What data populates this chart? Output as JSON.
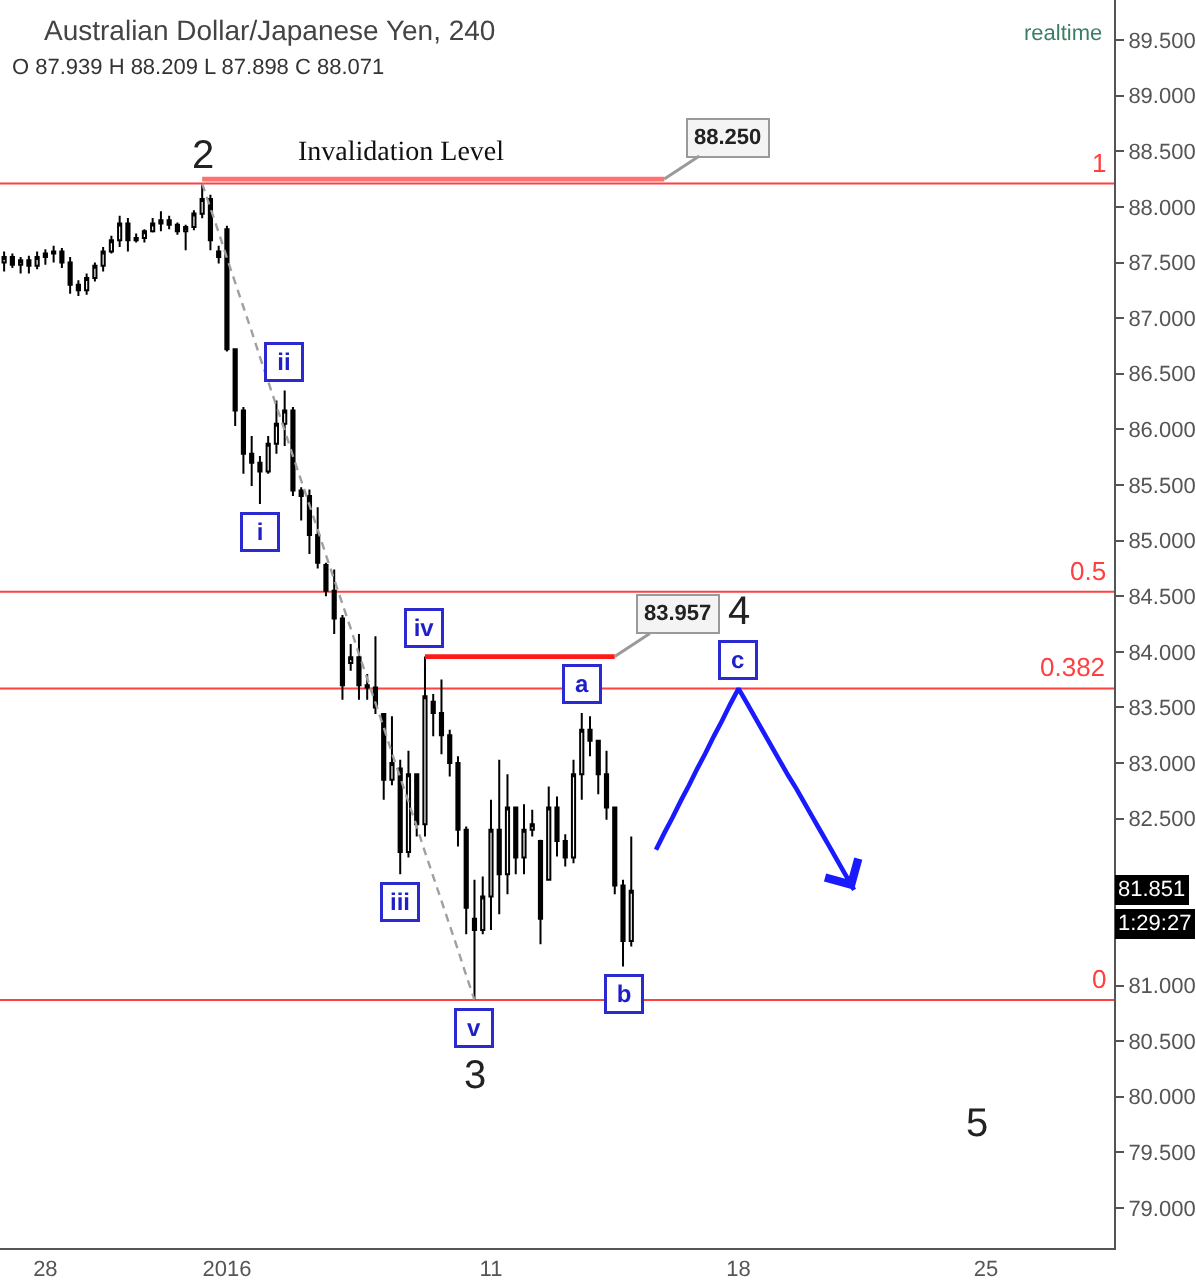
{
  "chart_data": {
    "type": "candlestick",
    "title": "Australian Dollar/Japanese Yen, 240",
    "subtitle": "O 87.939 H 88.209 L 87.898 C 88.071",
    "color": "#000000",
    "categories": [
      null,
      null,
      null,
      null,
      null,
      "28",
      null,
      null,
      null,
      null,
      null,
      null,
      null,
      null,
      null,
      null,
      null,
      null,
      null,
      null,
      null,
      null,
      null,
      null,
      null,
      null,
      null,
      "2016",
      null,
      null,
      null,
      null,
      null,
      null,
      null,
      null,
      null,
      null,
      null,
      null,
      null,
      null,
      null,
      null,
      null,
      null,
      null,
      null,
      null,
      null,
      null,
      null,
      null,
      null,
      null,
      null,
      null,
      null,
      null,
      "11",
      null,
      null,
      null,
      null,
      null,
      null,
      null,
      null,
      null,
      null,
      null,
      null,
      null,
      null,
      null,
      null,
      null,
      null,
      null,
      null,
      null,
      null,
      null,
      null,
      null,
      null,
      null,
      null,
      null,
      "18",
      null,
      null,
      null,
      null,
      null,
      null,
      null,
      null,
      null,
      null,
      null,
      null,
      null,
      null,
      null,
      null,
      null,
      null,
      null,
      null,
      null,
      null,
      null,
      null,
      null,
      null,
      null,
      null,
      null,
      "25",
      null,
      null,
      null,
      null,
      null,
      null,
      null,
      null,
      null,
      null,
      null,
      null,
      null,
      null,
      null
    ],
    "ohlc": [
      [
        87.5,
        87.6,
        87.42,
        87.55
      ],
      [
        87.55,
        87.58,
        87.45,
        87.48
      ],
      [
        87.48,
        87.55,
        87.4,
        87.52
      ],
      [
        87.52,
        87.56,
        87.4,
        87.47
      ],
      [
        87.47,
        87.6,
        87.44,
        87.55
      ],
      [
        87.55,
        87.62,
        87.48,
        87.58
      ],
      [
        87.58,
        87.65,
        87.5,
        87.6
      ],
      [
        87.6,
        87.63,
        87.45,
        87.5
      ],
      [
        87.5,
        87.55,
        87.22,
        87.3
      ],
      [
        87.3,
        87.34,
        87.2,
        87.25
      ],
      [
        87.25,
        87.4,
        87.21,
        87.36
      ],
      [
        87.36,
        87.5,
        87.33,
        87.47
      ],
      [
        87.47,
        87.64,
        87.42,
        87.6
      ],
      [
        87.6,
        87.74,
        87.58,
        87.7
      ],
      [
        87.7,
        87.92,
        87.64,
        87.85
      ],
      [
        87.85,
        87.9,
        87.6,
        87.7
      ],
      [
        87.7,
        87.76,
        87.68,
        87.72
      ],
      [
        87.72,
        87.8,
        87.68,
        87.78
      ],
      [
        87.78,
        87.9,
        87.77,
        87.85
      ],
      [
        87.85,
        87.96,
        87.78,
        87.88
      ],
      [
        87.88,
        87.92,
        87.8,
        87.84
      ],
      [
        87.84,
        87.86,
        87.75,
        87.78
      ],
      [
        87.78,
        87.84,
        87.61,
        87.82
      ],
      [
        87.82,
        87.97,
        87.79,
        87.94
      ],
      [
        87.939,
        88.209,
        87.898,
        88.071
      ],
      [
        88.07,
        88.11,
        87.61,
        87.7
      ],
      [
        87.6,
        87.65,
        87.49,
        87.55
      ],
      [
        87.8,
        87.83,
        86.7,
        86.72
      ],
      [
        86.72,
        86.72,
        86.03,
        86.17
      ],
      [
        86.17,
        86.2,
        85.6,
        85.78
      ],
      [
        85.78,
        85.94,
        85.49,
        85.7
      ],
      [
        85.7,
        85.76,
        85.33,
        85.62
      ],
      [
        85.62,
        85.94,
        85.6,
        85.87
      ],
      [
        85.87,
        86.26,
        85.78,
        86.05
      ],
      [
        86.05,
        86.35,
        85.85,
        86.17
      ],
      [
        86.17,
        86.2,
        85.4,
        85.45
      ],
      [
        85.45,
        85.48,
        85.18,
        85.4
      ],
      [
        85.4,
        85.46,
        84.88,
        85.05
      ],
      [
        85.05,
        85.3,
        84.75,
        84.8
      ],
      [
        84.78,
        84.8,
        84.5,
        84.55
      ],
      [
        84.55,
        84.74,
        84.16,
        84.3
      ],
      [
        84.3,
        84.33,
        83.57,
        83.7
      ],
      [
        83.9,
        84.07,
        83.83,
        83.95
      ],
      [
        83.95,
        84.16,
        83.57,
        83.7
      ],
      [
        83.7,
        83.8,
        83.57,
        83.68
      ],
      [
        83.68,
        84.14,
        83.44,
        83.5
      ],
      [
        83.44,
        83.44,
        82.67,
        82.85
      ],
      [
        82.85,
        83.42,
        82.8,
        83.0
      ],
      [
        82.95,
        83.03,
        82.0,
        82.2
      ],
      [
        82.2,
        83.11,
        82.15,
        82.9
      ],
      [
        82.9,
        82.9,
        82.34,
        82.45
      ],
      [
        82.45,
        83.957,
        82.34,
        83.6
      ],
      [
        83.55,
        83.62,
        83.24,
        83.45
      ],
      [
        83.45,
        83.75,
        83.08,
        83.25
      ],
      [
        83.25,
        83.3,
        82.88,
        83.0
      ],
      [
        83.0,
        83.06,
        82.25,
        82.4
      ],
      [
        82.4,
        82.43,
        81.46,
        81.7
      ],
      [
        81.6,
        81.95,
        80.87,
        81.5
      ],
      [
        81.5,
        81.98,
        81.46,
        81.8
      ],
      [
        81.8,
        82.67,
        81.5,
        82.4
      ],
      [
        82.4,
        83.03,
        81.64,
        82.0
      ],
      [
        82.0,
        82.9,
        81.82,
        82.6
      ],
      [
        82.6,
        82.61,
        82.0,
        82.15
      ],
      [
        82.15,
        82.63,
        82.0,
        82.4
      ],
      [
        82.4,
        82.58,
        82.34,
        82.45
      ],
      [
        82.3,
        82.31,
        81.37,
        81.6
      ],
      [
        81.95,
        82.79,
        81.95,
        82.6
      ],
      [
        82.6,
        82.7,
        82.16,
        82.3
      ],
      [
        82.3,
        82.36,
        82.07,
        82.15
      ],
      [
        82.15,
        83.03,
        82.1,
        82.9
      ],
      [
        82.9,
        83.45,
        82.67,
        83.3
      ],
      [
        83.3,
        83.42,
        83.06,
        83.2
      ],
      [
        83.2,
        83.2,
        82.72,
        82.9
      ],
      [
        82.9,
        83.11,
        82.49,
        82.6
      ],
      [
        82.6,
        82.6,
        81.82,
        81.9
      ],
      [
        81.9,
        81.95,
        81.17,
        81.4
      ],
      [
        81.4,
        82.34,
        81.35,
        81.851
      ],
      null,
      null,
      null,
      null,
      null,
      null,
      null,
      null,
      null,
      null,
      null,
      null,
      null,
      null,
      null,
      null,
      null,
      null,
      null,
      null,
      null,
      null,
      null,
      null,
      null,
      null,
      null,
      null,
      null,
      null,
      null,
      null,
      null,
      null,
      null,
      null,
      null,
      null,
      null,
      null,
      null,
      null,
      null,
      null,
      null,
      null,
      null,
      null,
      null,
      null,
      null,
      null,
      null,
      null,
      null,
      null,
      null,
      null
    ],
    "series": [
      {
        "type": "line",
        "color": "#a0a0a0",
        "line_style": "dashed",
        "values": [
          null,
          null,
          null,
          null,
          null,
          null,
          null,
          null,
          null,
          null,
          null,
          null,
          null,
          null,
          null,
          null,
          null,
          null,
          null,
          null,
          null,
          null,
          null,
          null,
          88.21,
          87.99,
          87.77,
          87.54,
          87.32,
          87.1,
          86.88,
          86.65,
          86.43,
          86.21,
          85.99,
          85.76,
          85.54,
          85.32,
          85.1,
          84.87,
          84.65,
          84.43,
          84.21,
          83.98,
          83.76,
          83.54,
          83.32,
          83.09,
          82.87,
          82.65,
          82.43,
          82.2,
          81.98,
          81.76,
          81.54,
          81.32,
          81.09,
          80.87,
          null,
          null,
          null,
          null,
          null,
          null,
          null,
          null,
          null,
          null,
          null,
          null,
          null,
          null,
          null,
          null,
          null,
          null,
          null,
          null,
          null,
          null,
          null,
          null,
          null,
          null,
          null,
          null,
          null,
          null,
          null,
          null,
          null,
          null,
          null,
          null,
          null,
          null,
          null,
          null,
          null,
          null,
          null,
          null,
          null,
          null,
          null,
          null,
          null,
          null,
          null,
          null,
          null,
          null,
          null,
          null,
          null,
          null,
          null,
          null,
          null,
          null,
          null,
          null,
          null,
          null,
          null,
          null,
          null,
          null,
          null,
          null,
          null,
          null,
          null,
          null,
          null
        ]
      },
      {
        "type": "line",
        "color": "#ff7070",
        "line_style": "solid",
        "values": [
          null,
          null,
          null,
          null,
          null,
          null,
          null,
          null,
          null,
          null,
          null,
          null,
          null,
          null,
          null,
          null,
          null,
          null,
          null,
          null,
          null,
          null,
          null,
          null,
          88.25,
          88.25,
          88.25,
          88.25,
          88.25,
          88.25,
          88.25,
          88.25,
          88.25,
          88.25,
          88.25,
          88.25,
          88.25,
          88.25,
          88.25,
          88.25,
          88.25,
          88.25,
          88.25,
          88.25,
          88.25,
          88.25,
          88.25,
          88.25,
          88.25,
          88.25,
          88.25,
          88.25,
          88.25,
          88.25,
          88.25,
          88.25,
          88.25,
          88.25,
          88.25,
          88.25,
          88.25,
          88.25,
          88.25,
          88.25,
          88.25,
          88.25,
          88.25,
          88.25,
          88.25,
          88.25,
          88.25,
          88.25,
          88.25,
          88.25,
          88.25,
          88.25,
          88.25,
          88.25,
          88.25,
          88.25,
          88.25,
          null,
          null,
          null,
          null,
          null,
          null,
          null,
          null,
          null,
          null,
          null,
          null,
          null,
          null,
          null,
          null,
          null,
          null,
          null,
          null,
          null,
          null,
          null,
          null,
          null,
          null,
          null,
          null,
          null,
          null,
          null,
          null,
          null,
          null,
          null,
          null,
          null,
          null,
          null,
          null,
          null,
          null,
          null,
          null,
          null,
          null,
          null,
          null,
          null,
          null,
          null,
          null,
          null,
          null
        ]
      },
      {
        "type": "line",
        "color": "#ff1a1a",
        "line_style": "solid",
        "values": [
          null,
          null,
          null,
          null,
          null,
          null,
          null,
          null,
          null,
          null,
          null,
          null,
          null,
          null,
          null,
          null,
          null,
          null,
          null,
          null,
          null,
          null,
          null,
          null,
          null,
          null,
          null,
          null,
          null,
          null,
          null,
          null,
          null,
          null,
          null,
          null,
          null,
          null,
          null,
          null,
          null,
          null,
          null,
          null,
          null,
          null,
          null,
          null,
          null,
          null,
          null,
          83.957,
          83.957,
          83.957,
          83.957,
          83.957,
          83.957,
          83.957,
          83.957,
          83.957,
          83.957,
          83.957,
          83.957,
          83.957,
          83.957,
          83.957,
          83.957,
          83.957,
          83.957,
          83.957,
          83.957,
          83.957,
          83.957,
          83.957,
          83.957,
          null,
          null,
          null,
          null,
          null,
          null,
          null,
          null,
          null,
          null,
          null,
          null,
          null,
          null,
          null,
          null,
          null,
          null,
          null,
          null,
          null,
          null,
          null,
          null,
          null,
          null,
          null,
          null,
          null,
          null,
          null,
          null,
          null,
          null,
          null,
          null,
          null,
          null,
          null,
          null,
          null,
          null,
          null,
          null,
          null,
          null,
          null,
          null,
          null,
          null,
          null,
          null,
          null,
          null,
          null,
          null,
          null,
          null,
          null,
          null
        ]
      },
      {
        "type": "line",
        "color": "#1a1aff",
        "line_style": "solid",
        "values": [
          null,
          null,
          null,
          null,
          null,
          null,
          null,
          null,
          null,
          null,
          null,
          null,
          null,
          null,
          null,
          null,
          null,
          null,
          null,
          null,
          null,
          null,
          null,
          null,
          null,
          null,
          null,
          null,
          null,
          null,
          null,
          null,
          null,
          null,
          null,
          null,
          null,
          null,
          null,
          null,
          null,
          null,
          null,
          null,
          null,
          null,
          null,
          null,
          null,
          null,
          null,
          null,
          null,
          null,
          null,
          null,
          null,
          null,
          null,
          null,
          null,
          null,
          null,
          null,
          null,
          null,
          null,
          null,
          null,
          null,
          null,
          null,
          null,
          null,
          null,
          null,
          null,
          null,
          null,
          82.22,
          82.37,
          82.51,
          82.66,
          82.8,
          82.95,
          83.09,
          83.24,
          83.38,
          83.53,
          83.67,
          83.54,
          83.41,
          83.28,
          83.15,
          83.02,
          82.89,
          82.77,
          82.64,
          82.51,
          82.38,
          82.25,
          82.12,
          81.99,
          81.86,
          null,
          null,
          null,
          null,
          null,
          null,
          null,
          null,
          null,
          null,
          null,
          null,
          null,
          null,
          null,
          null,
          null,
          null,
          null,
          null,
          null,
          null,
          null,
          null,
          null,
          null,
          null,
          null,
          null,
          null,
          null
        ]
      }
    ],
    "ref_lines": [
      {
        "axis": "y",
        "value": 88.21,
        "color": "#ff4040"
      },
      {
        "axis": "y",
        "value": 84.54,
        "color": "#ff4040"
      },
      {
        "axis": "y",
        "value": 83.67,
        "color": "#ff4040"
      },
      {
        "axis": "y",
        "value": 80.87,
        "color": "#ff4040"
      }
    ],
    "annotations": [
      "realtime",
      "i",
      "ii",
      "iii",
      "iv",
      "v",
      "a",
      "b",
      "c",
      "2",
      "3",
      "4",
      "5",
      "Invalidation Level",
      "88.250",
      "83.957",
      "81.851",
      "1:29:27",
      "1",
      "0.5",
      "0.382",
      "0"
    ],
    "ylim": [
      78.64,
      89.86
    ],
    "yticks": [
      {
        "value": 79,
        "label": "79.000"
      },
      {
        "value": 79.5,
        "label": "79.500"
      },
      {
        "value": 80,
        "label": "80.000"
      },
      {
        "value": 80.5,
        "label": "80.500"
      },
      {
        "value": 81,
        "label": "81.000"
      },
      {
        "value": 82.5,
        "label": "82.500"
      },
      {
        "value": 83,
        "label": "83.000"
      },
      {
        "value": 83.5,
        "label": "83.500"
      },
      {
        "value": 84,
        "label": "84.000"
      },
      {
        "value": 84.5,
        "label": "84.500"
      },
      {
        "value": 85,
        "label": "85.000"
      },
      {
        "value": 85.5,
        "label": "85.500"
      },
      {
        "value": 86,
        "label": "86.000"
      },
      {
        "value": 86.5,
        "label": "86.500"
      },
      {
        "value": 87,
        "label": "87.000"
      },
      {
        "value": 87.5,
        "label": "87.500"
      },
      {
        "value": 88,
        "label": "88.000"
      },
      {
        "value": 88.5,
        "label": "88.500"
      },
      {
        "value": 89,
        "label": "89.000"
      },
      {
        "value": 89.5,
        "label": "89.500"
      }
    ]
  }
}
